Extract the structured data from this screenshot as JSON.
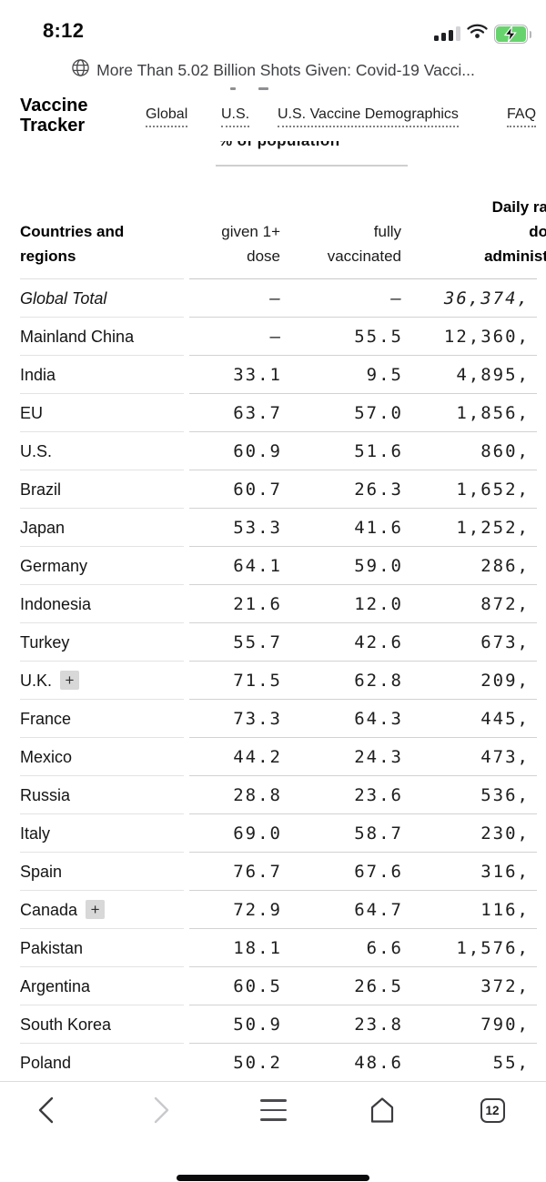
{
  "status_bar": {
    "time": "8:12",
    "icons": [
      "cellular-signal",
      "wifi",
      "battery-charging"
    ]
  },
  "browser_header": {
    "page_title": "More Than 5.02 Billion Shots Given: Covid-19 Vacci..."
  },
  "site": {
    "brand": "Vaccine\nTracker",
    "nav": [
      {
        "label": "Global"
      },
      {
        "label": "U.S."
      },
      {
        "label": "U.S. Vaccine Demographics"
      },
      {
        "label": "FAQ"
      }
    ],
    "unit_selector": "% of population"
  },
  "table": {
    "header": {
      "col1": "Countries and\nregions",
      "col2": "given 1+\ndose",
      "col3": "fully\nvaccinated",
      "col4": "Daily ra\ndo\nadminist"
    },
    "plus_badge": "+",
    "rows": [
      {
        "name": "Global Total",
        "dose1": "–",
        "fully": "–",
        "daily": "36,374,",
        "style": "total",
        "plus": false
      },
      {
        "name": "Mainland China",
        "dose1": "–",
        "fully": "55.5",
        "daily": "12,360,",
        "plus": false
      },
      {
        "name": "India",
        "dose1": "33.1",
        "fully": "9.5",
        "daily": "4,895,",
        "plus": false
      },
      {
        "name": "EU",
        "dose1": "63.7",
        "fully": "57.0",
        "daily": "1,856,",
        "plus": false
      },
      {
        "name": "U.S.",
        "dose1": "60.9",
        "fully": "51.6",
        "daily": "860,",
        "plus": false
      },
      {
        "name": "Brazil",
        "dose1": "60.7",
        "fully": "26.3",
        "daily": "1,652,",
        "plus": false
      },
      {
        "name": "Japan",
        "dose1": "53.3",
        "fully": "41.6",
        "daily": "1,252,",
        "plus": false
      },
      {
        "name": "Germany",
        "dose1": "64.1",
        "fully": "59.0",
        "daily": "286,",
        "plus": false
      },
      {
        "name": "Indonesia",
        "dose1": "21.6",
        "fully": "12.0",
        "daily": "872,",
        "plus": false
      },
      {
        "name": "Turkey",
        "dose1": "55.7",
        "fully": "42.6",
        "daily": "673,",
        "plus": false
      },
      {
        "name": "U.K.",
        "dose1": "71.5",
        "fully": "62.8",
        "daily": "209,",
        "plus": true
      },
      {
        "name": "France",
        "dose1": "73.3",
        "fully": "64.3",
        "daily": "445,",
        "plus": false
      },
      {
        "name": "Mexico",
        "dose1": "44.2",
        "fully": "24.3",
        "daily": "473,",
        "plus": false
      },
      {
        "name": "Russia",
        "dose1": "28.8",
        "fully": "23.6",
        "daily": "536,",
        "plus": false
      },
      {
        "name": "Italy",
        "dose1": "69.0",
        "fully": "58.7",
        "daily": "230,",
        "plus": false
      },
      {
        "name": "Spain",
        "dose1": "76.7",
        "fully": "67.6",
        "daily": "316,",
        "plus": false
      },
      {
        "name": "Canada",
        "dose1": "72.9",
        "fully": "64.7",
        "daily": "116,",
        "plus": true
      },
      {
        "name": "Pakistan",
        "dose1": "18.1",
        "fully": "6.6",
        "daily": "1,576,",
        "plus": false
      },
      {
        "name": "Argentina",
        "dose1": "60.5",
        "fully": "26.5",
        "daily": "372,",
        "plus": false
      },
      {
        "name": "South Korea",
        "dose1": "50.9",
        "fully": "23.8",
        "daily": "790,",
        "plus": false
      },
      {
        "name": "Poland",
        "dose1": "50.2",
        "fully": "48.6",
        "daily": "55,",
        "plus": false
      }
    ]
  },
  "toolbar": {
    "tab_count": "12",
    "buttons": [
      "back",
      "forward",
      "menu",
      "home",
      "tabs"
    ]
  },
  "colors": {
    "battery_charge_green": "#67d36d",
    "divider_gray": "#d2d2d2",
    "badge_gray": "#d8d8d8"
  }
}
